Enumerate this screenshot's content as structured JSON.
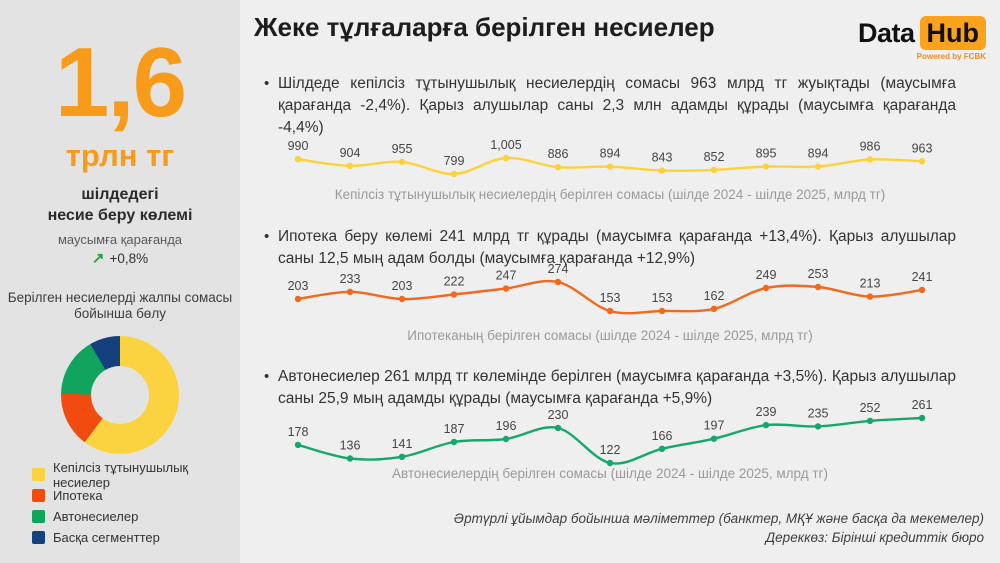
{
  "page": {
    "title": "Жеке тұлғаларға берілген несиелер"
  },
  "logo": {
    "part1": "Data",
    "part2": "Hub",
    "tagline": "Powered by FCBK",
    "accent": "#F9A21B"
  },
  "colors": {
    "accent_orange": "#F89B1B",
    "line_yellow": "#FBD23A",
    "line_orange": "#F2691E",
    "line_green": "#14A86C",
    "navy": "#15407E",
    "sidebar_bg": "#e3e3e3",
    "main_bg": "#efefef",
    "trend_arrow_green": "#2AA33C"
  },
  "sidebar": {
    "headline_value": "1,6",
    "headline_unit": "трлн тг",
    "headline_caption_line1": "шілдедегі",
    "headline_caption_line2": "несие беру көлемі",
    "compare_label": "маусымға қарағанда",
    "compare_arrow": "↗",
    "compare_value": "+0,8%",
    "donut_title_line1": "Берілген несиелерді жалпы сомасы",
    "donut_title_line2": "бойынша бөлу",
    "legend": [
      {
        "label": "Кепілсіз тұтынушылық несиелер",
        "color": "#FBD340"
      },
      {
        "label": "Ипотека",
        "color": "#F14B10"
      },
      {
        "label": "Автонесиелер",
        "color": "#10A45F"
      },
      {
        "label": "Басқа сегменттер",
        "color": "#15407E"
      }
    ]
  },
  "sections": [
    {
      "bullet": "Шілдеде кепілсіз тұтынушылық несиелердің сомасы 963 млрд тг жуықтады (маусымға қарағанда -2,4%). Қарыз алушылар саны 2,3 млн адамды құрады (маусымға қарағанда -4,4%)",
      "caption": "Кепілсіз тұтынушылық несиелердің берілген сомасы (шілде 2024 - шілде 2025, млрд тг)"
    },
    {
      "bullet": "Ипотека беру көлемі 241 млрд тг құрады (маусымға қарағанда +13,4%). Қарыз алушылар саны 12,5 мың адам болды (маусымға қарағанда +12,9%)",
      "caption": "Ипотеканың берілген сомасы (шілде 2024 - шілде 2025, млрд тг)"
    },
    {
      "bullet": "Автонесиелер 261 млрд тг көлемінде берілген (маусымға қарағанда +3,5%). Қарыз алушылар саны 25,9 мың адамды құрады (маусымға қарағанда +5,9%)",
      "caption": "Автонесиелердің берілген сомасы (шілде 2024 - шілде 2025, млрд тг)"
    }
  ],
  "chart_data": [
    {
      "type": "line",
      "title": "Кепілсіз тұтынушылық несиелердің берілген сомасы",
      "period": "шілде 2024 - шілде 2025",
      "unit": "млрд тг",
      "values": [
        990,
        904,
        955,
        799,
        1005,
        886,
        894,
        843,
        852,
        895,
        894,
        986,
        963
      ],
      "labels": [
        "990",
        "904",
        "955",
        "799",
        "1,005",
        "886",
        "894",
        "843",
        "852",
        "895",
        "894",
        "986",
        "963"
      ],
      "color": "#FBD23A",
      "grid": false,
      "legend_position": "none"
    },
    {
      "type": "line",
      "title": "Ипотеканың берілген сомасы",
      "period": "шілде 2024 - шілде 2025",
      "unit": "млрд тг",
      "values": [
        203,
        233,
        203,
        222,
        247,
        274,
        153,
        153,
        162,
        249,
        253,
        213,
        241
      ],
      "labels": [
        "203",
        "233",
        "203",
        "222",
        "247",
        "274",
        "153",
        "153",
        "162",
        "249",
        "253",
        "213",
        "241"
      ],
      "color": "#F2691E",
      "grid": false,
      "legend_position": "none"
    },
    {
      "type": "line",
      "title": "Автонесиелердің берілген сомасы",
      "period": "шілде 2024 - шілде 2025",
      "unit": "млрд тг",
      "values": [
        178,
        136,
        141,
        187,
        196,
        230,
        122,
        166,
        197,
        239,
        235,
        252,
        261
      ],
      "labels": [
        "178",
        "136",
        "141",
        "187",
        "196",
        "230",
        "122",
        "166",
        "197",
        "239",
        "235",
        "252",
        "261"
      ],
      "color": "#14A86C",
      "grid": false,
      "legend_position": "none"
    },
    {
      "type": "pie",
      "title": "Берілген несиелерді жалпы сомасы бойынша бөлу",
      "labels": [
        "Кепілсіз тұтынушылық несиелер",
        "Ипотека",
        "Автонесиелер",
        "Басқа сегменттер"
      ],
      "values": [
        60.2,
        15.1,
        16.3,
        8.4
      ],
      "colors": [
        "#FBD340",
        "#F14B10",
        "#10A45F",
        "#15407E"
      ],
      "donut": true,
      "legend_position": "below"
    }
  ],
  "footer": {
    "line1": "Әртүрлі ұйымдар бойынша мәліметтер (банктер, МҚҰ және басқа да мекемелер)",
    "line2": "Дереккөз: Бірінші кредиттік бюро"
  }
}
